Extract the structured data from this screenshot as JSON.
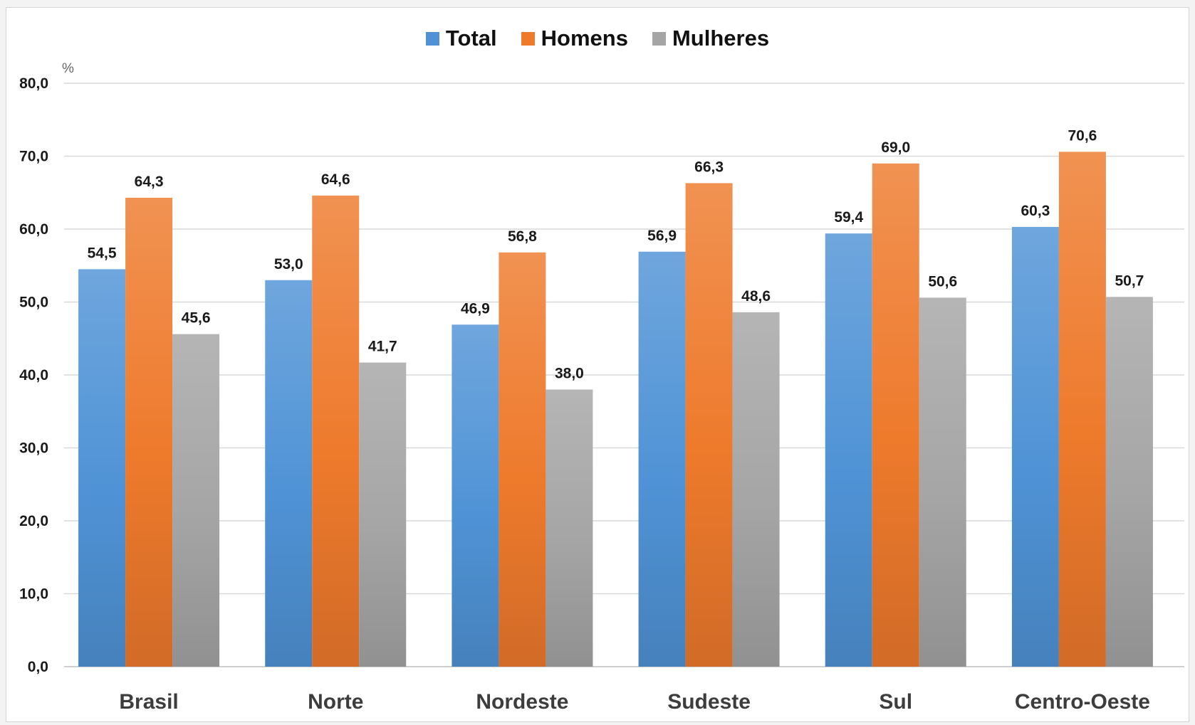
{
  "chart_data": {
    "type": "bar",
    "unit_label": "%",
    "categories": [
      "Brasil",
      "Norte",
      "Nordeste",
      "Sudeste",
      "Sul",
      "Centro-Oeste"
    ],
    "series": [
      {
        "name": "Total",
        "color": "#4f93d6",
        "values": [
          54.5,
          53.0,
          46.9,
          56.9,
          59.4,
          60.3
        ],
        "labels": [
          "54,5",
          "53,0",
          "46,9",
          "56,9",
          "59,4",
          "60,3"
        ]
      },
      {
        "name": "Homens",
        "color": "#ee7a2c",
        "values": [
          64.3,
          64.6,
          56.8,
          66.3,
          69.0,
          70.6
        ],
        "labels": [
          "64,3",
          "64,6",
          "56,8",
          "66,3",
          "69,0",
          "70,6"
        ]
      },
      {
        "name": "Mulheres",
        "color": "#a5a5a5",
        "values": [
          45.6,
          41.7,
          38.0,
          48.6,
          50.6,
          50.7
        ],
        "labels": [
          "45,6",
          "41,7",
          "38,0",
          "48,6",
          "50,6",
          "50,7"
        ]
      }
    ],
    "ylim": [
      0,
      80
    ],
    "yticks": [
      0,
      10,
      20,
      30,
      40,
      50,
      60,
      70,
      80
    ],
    "ytick_labels": [
      "0,0",
      "10,0",
      "20,0",
      "30,0",
      "40,0",
      "50,0",
      "60,0",
      "70,0",
      "80,0"
    ],
    "grid": true,
    "legend_position": "top-center"
  }
}
